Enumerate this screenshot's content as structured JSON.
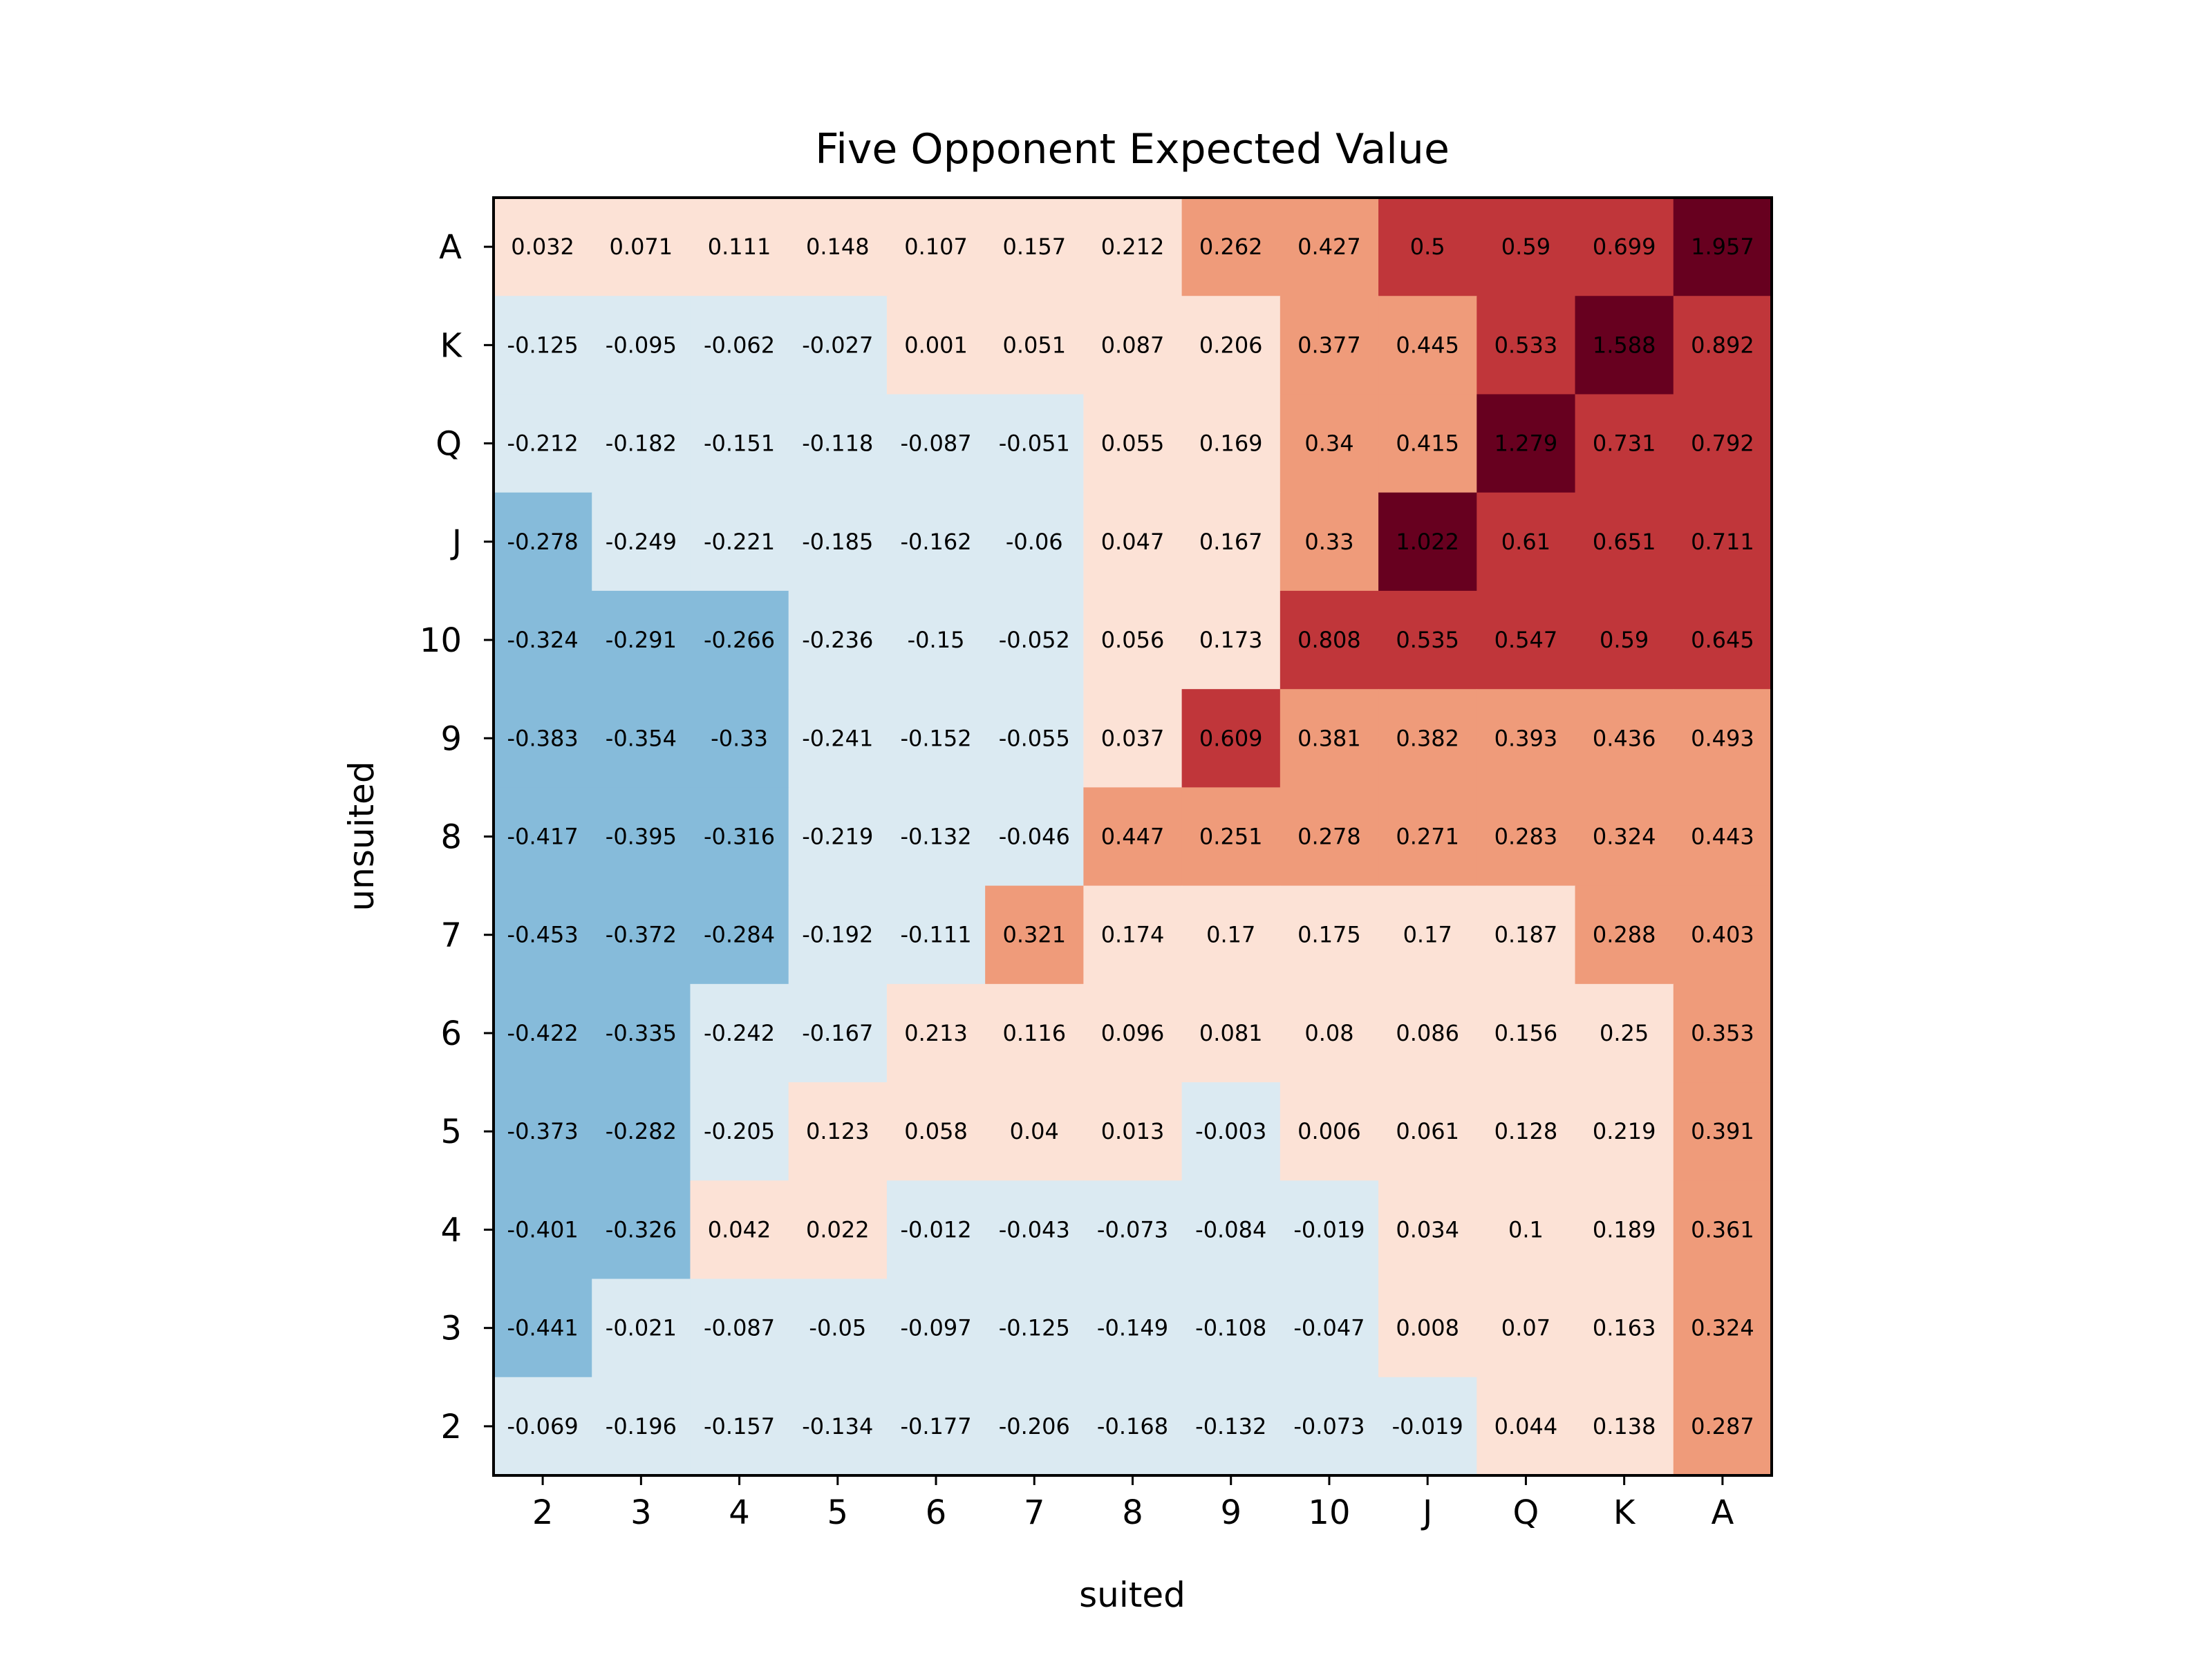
{
  "chart_data": {
    "type": "heatmap",
    "title": "Five Opponent Expected Value",
    "xlabel": "suited",
    "ylabel": "unsuited",
    "x_categories": [
      "2",
      "3",
      "4",
      "5",
      "6",
      "7",
      "8",
      "9",
      "10",
      "J",
      "Q",
      "K",
      "A"
    ],
    "y_categories": [
      "A",
      "K",
      "Q",
      "J",
      "10",
      "9",
      "8",
      "7",
      "6",
      "5",
      "4",
      "3",
      "2"
    ],
    "colormap": "RdBu_r (binned)",
    "color_bins": [
      {
        "max": -0.25,
        "color": "#86bbda"
      },
      {
        "max": 0,
        "color": "#dbeaf2"
      },
      {
        "max": 0.25,
        "color": "#fce2d6"
      },
      {
        "max": 0.5,
        "color": "#ef9b7a"
      },
      {
        "max": 1,
        "color": "#c0363a"
      },
      {
        "max": 99,
        "color": "#67001f"
      }
    ],
    "values": [
      [
        0.032,
        0.071,
        0.111,
        0.148,
        0.107,
        0.157,
        0.212,
        0.262,
        0.427,
        0.5,
        0.59,
        0.699,
        1.957
      ],
      [
        -0.125,
        -0.095,
        -0.062,
        -0.027,
        0.001,
        0.051,
        0.087,
        0.206,
        0.377,
        0.445,
        0.533,
        1.588,
        0.892
      ],
      [
        -0.212,
        -0.182,
        -0.151,
        -0.118,
        -0.087,
        -0.051,
        0.055,
        0.169,
        0.34,
        0.415,
        1.279,
        0.731,
        0.792
      ],
      [
        -0.278,
        -0.249,
        -0.221,
        -0.185,
        -0.162,
        -0.06,
        0.047,
        0.167,
        0.33,
        1.022,
        0.61,
        0.651,
        0.711
      ],
      [
        -0.324,
        -0.291,
        -0.266,
        -0.236,
        -0.15,
        -0.052,
        0.056,
        0.173,
        0.808,
        0.535,
        0.547,
        0.59,
        0.645
      ],
      [
        -0.383,
        -0.354,
        -0.33,
        -0.241,
        -0.152,
        -0.055,
        0.037,
        0.609,
        0.381,
        0.382,
        0.393,
        0.436,
        0.493
      ],
      [
        -0.417,
        -0.395,
        -0.316,
        -0.219,
        -0.132,
        -0.046,
        0.447,
        0.251,
        0.278,
        0.271,
        0.283,
        0.324,
        0.443
      ],
      [
        -0.453,
        -0.372,
        -0.284,
        -0.192,
        -0.111,
        0.321,
        0.174,
        0.17,
        0.175,
        0.17,
        0.187,
        0.288,
        0.403
      ],
      [
        -0.422,
        -0.335,
        -0.242,
        -0.167,
        0.213,
        0.116,
        0.096,
        0.081,
        0.08,
        0.086,
        0.156,
        0.25,
        0.353
      ],
      [
        -0.373,
        -0.282,
        -0.205,
        0.123,
        0.058,
        0.04,
        0.013,
        -0.003,
        0.006,
        0.061,
        0.128,
        0.219,
        0.391
      ],
      [
        -0.401,
        -0.326,
        0.042,
        0.022,
        -0.012,
        -0.043,
        -0.073,
        -0.084,
        -0.019,
        0.034,
        0.1,
        0.189,
        0.361
      ],
      [
        -0.441,
        -0.021,
        -0.087,
        -0.05,
        -0.097,
        -0.125,
        -0.149,
        -0.108,
        -0.047,
        0.008,
        0.07,
        0.163,
        0.324
      ],
      [
        -0.069,
        -0.196,
        -0.157,
        -0.134,
        -0.177,
        -0.206,
        -0.168,
        -0.132,
        -0.073,
        -0.019,
        0.044,
        0.138,
        0.287
      ]
    ],
    "grid": false,
    "legend": "none"
  }
}
